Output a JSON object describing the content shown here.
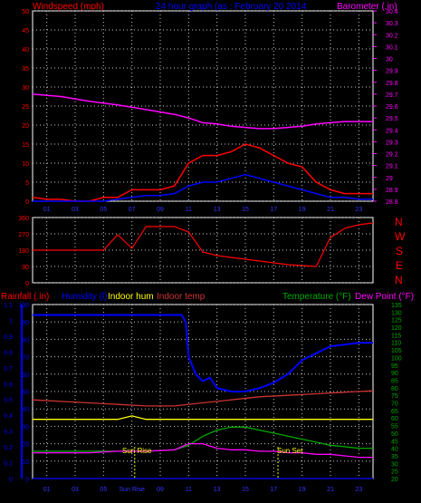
{
  "colors": {
    "wind": "#ff0000",
    "gust": "#0000ff",
    "baro": "#ff00ff",
    "dir": "#ff0000",
    "rain": "#0000ff",
    "humidity": "#0000ff",
    "indoor_hum": "#ffff00",
    "indoor_temp": "#cc3333",
    "temperature": "#00aa00",
    "dew_point": "#ff00ff",
    "grid": "#c8c8c8",
    "frame": "#ffffff"
  },
  "header": {
    "windspeed_label": "Windspeed (mph)",
    "title": "24 hour graph (as : February 20 2014",
    "barometer_label": "Barometer (.in)"
  },
  "legend_bottom": {
    "rainfall": "Rainfall (.in)",
    "humidity": "Humidity (l)",
    "indoor_hum": "Indoor hum",
    "indoor_temp": "Indoor temp",
    "temperature": "Temperature (°F)",
    "dew_point": "Dew Point (°F)"
  },
  "compass": [
    "N",
    "W",
    "S",
    "E",
    "N"
  ],
  "annotations": {
    "sun_rise": "Sun Rise",
    "sun_set": "Sun Set"
  },
  "hour_ticks": [
    "01",
    "03",
    "05",
    "07",
    "09",
    "11",
    "13",
    "15",
    "17",
    "19",
    "21",
    "23"
  ],
  "hour_ticks_bottom": [
    "01",
    "03",
    "05",
    "Sun Rise",
    "09",
    "11",
    "13",
    "15",
    "17",
    "19",
    "21",
    "23"
  ],
  "chart_data": [
    {
      "type": "line",
      "name": "Wind speed and barometer",
      "x_unit": "hour",
      "left_axis": {
        "label": "Windspeed (mph)",
        "ticks": [
          0,
          5,
          10,
          15,
          20,
          25,
          30,
          35,
          40,
          45,
          50
        ],
        "ylim": [
          0,
          50
        ]
      },
      "right_axis": {
        "label": "Barometer (.in)",
        "ticks": [
          28.8,
          28.9,
          29,
          29.1,
          29.2,
          29.3,
          29.4,
          29.5,
          29.6,
          29.7,
          29.8,
          29.9,
          30,
          30.1,
          30.2,
          30.3,
          30.4
        ],
        "ylim": [
          28.8,
          30.4
        ]
      },
      "series": [
        {
          "key": "baro",
          "axis": "right",
          "x": [
            0,
            2,
            4,
            6,
            8,
            10,
            11,
            12,
            13,
            14,
            15,
            16,
            17,
            18,
            19,
            20,
            21,
            22,
            23,
            24
          ],
          "y": [
            29.7,
            29.68,
            29.64,
            29.61,
            29.57,
            29.53,
            29.5,
            29.46,
            29.45,
            29.43,
            29.42,
            29.41,
            29.41,
            29.42,
            29.43,
            29.45,
            29.46,
            29.47,
            29.47,
            29.47
          ]
        },
        {
          "key": "wind",
          "axis": "left",
          "x": [
            0,
            1,
            2,
            3,
            4,
            5,
            6,
            7,
            8,
            9,
            10,
            11,
            12,
            13,
            14,
            15,
            16,
            17,
            18,
            19,
            20,
            21,
            22,
            23,
            24
          ],
          "y": [
            1,
            0.5,
            0.5,
            0,
            0,
            1,
            1,
            3,
            3,
            3,
            4,
            10,
            12,
            12,
            13,
            15,
            14,
            12,
            10,
            9,
            5,
            3,
            2,
            2,
            2
          ]
        },
        {
          "key": "gust",
          "axis": "left",
          "x": [
            0,
            1,
            2,
            3,
            4,
            5,
            6,
            7,
            8,
            9,
            10,
            11,
            12,
            13,
            14,
            15,
            16,
            17,
            18,
            19,
            20,
            21,
            22,
            23,
            24
          ],
          "y": [
            0,
            0,
            0,
            0,
            0,
            0,
            0.5,
            1,
            1.5,
            1.5,
            2,
            4,
            5,
            5,
            6,
            7,
            6,
            5,
            4,
            3,
            2,
            1,
            1,
            0.5,
            0.5
          ]
        }
      ]
    },
    {
      "type": "scatter",
      "name": "Wind direction",
      "x_unit": "hour",
      "y_axis": {
        "ticks": [
          0,
          90,
          180,
          270,
          360
        ],
        "ylim": [
          0,
          360
        ]
      },
      "series": [
        {
          "key": "dir",
          "x": [
            0,
            1,
            2,
            3,
            4,
            5,
            6,
            7,
            8,
            9,
            10,
            11,
            12,
            13,
            14,
            15,
            16,
            17,
            18,
            19,
            20,
            21,
            22,
            23,
            24
          ],
          "y": [
            180,
            180,
            180,
            180,
            180,
            180,
            265,
            190,
            310,
            310,
            310,
            280,
            170,
            150,
            140,
            130,
            120,
            110,
            100,
            95,
            90,
            250,
            300,
            320,
            330
          ]
        }
      ]
    },
    {
      "type": "line",
      "name": "Temperature, humidity, rain",
      "x_unit": "hour",
      "left_axis": {
        "label": "Rainfall (.in)",
        "ticks": [
          0,
          0.1,
          0.2,
          0.3,
          0.4,
          0.5,
          0.6,
          0.7,
          0.8,
          0.9,
          1,
          1.1
        ],
        "ylim": [
          0,
          1.1
        ]
      },
      "mid_axis": {
        "label": "Humidity",
        "ticks": [
          0,
          10,
          20,
          30,
          40,
          50,
          60,
          70,
          80,
          90,
          100
        ],
        "ylim": [
          0,
          100
        ]
      },
      "right_axis": {
        "label": "Temperature (°F)",
        "ticks": [
          20,
          25,
          30,
          35,
          40,
          45,
          50,
          55,
          60,
          65,
          70,
          75,
          80,
          85,
          90,
          95,
          100,
          105,
          110,
          115,
          120,
          125,
          130,
          135
        ],
        "ylim": [
          20,
          135
        ]
      },
      "series": [
        {
          "key": "humidity",
          "axis": "mid",
          "x": [
            0,
            2,
            4,
            6,
            8,
            10,
            10.5,
            10.8,
            11,
            11.5,
            12,
            12.5,
            13,
            14,
            15,
            16,
            17,
            18,
            19,
            20,
            21,
            22,
            23,
            24
          ],
          "y": [
            94,
            94,
            94,
            94,
            94,
            94,
            94,
            90,
            70,
            60,
            56,
            58,
            52,
            50,
            50,
            52,
            55,
            60,
            68,
            72,
            76,
            77,
            78,
            78
          ]
        },
        {
          "key": "indoor_temp",
          "axis": "right",
          "x": [
            0,
            2,
            4,
            6,
            8,
            10,
            12,
            14,
            16,
            18,
            20,
            22,
            24
          ],
          "y": [
            72,
            71,
            70,
            69,
            68,
            68,
            70,
            72,
            74,
            75,
            76,
            77,
            78
          ]
        },
        {
          "key": "indoor_hum",
          "axis": "mid",
          "x": [
            0,
            4,
            6,
            7,
            8,
            10,
            12,
            14,
            16,
            18,
            20,
            22,
            24
          ],
          "y": [
            34,
            34,
            34,
            36,
            34,
            34,
            34,
            34,
            34,
            34,
            34,
            34,
            34
          ]
        },
        {
          "key": "temperature",
          "axis": "right",
          "x": [
            0,
            2,
            4,
            6,
            8,
            10,
            11,
            12,
            13,
            14,
            15,
            16,
            17,
            18,
            19,
            20,
            21,
            22,
            23,
            24
          ],
          "y": [
            38,
            38,
            38,
            38,
            38,
            39,
            42,
            48,
            52,
            54,
            54,
            52,
            50,
            48,
            46,
            44,
            42,
            41,
            40,
            40
          ]
        },
        {
          "key": "dew_point",
          "axis": "right",
          "x": [
            0,
            2,
            4,
            6,
            8,
            10,
            11,
            12,
            13,
            14,
            15,
            16,
            17,
            18,
            19,
            20,
            21,
            22,
            23,
            24
          ],
          "y": [
            37,
            37,
            37,
            38,
            38,
            39,
            43,
            43,
            40,
            39,
            39,
            38,
            38,
            37,
            37,
            36,
            36,
            35,
            34,
            34
          ]
        },
        {
          "key": "rain",
          "axis": "left",
          "x": [
            0,
            24
          ],
          "y": [
            0,
            0
          ]
        }
      ]
    }
  ]
}
